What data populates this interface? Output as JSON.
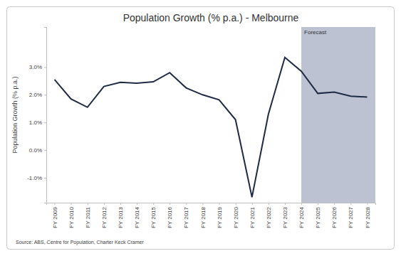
{
  "chart_data": {
    "type": "line",
    "title": "Population Growth (% p.a.) - Melbourne",
    "y_label": "Population Growth (% p.a.)",
    "source": "Source: ABS, Centre for Population, Charter Keck Cramer",
    "categories": [
      "FY 2009",
      "FY 2010",
      "FY 2011",
      "FY 2012",
      "FY 2013",
      "FY 2014",
      "FY 2015",
      "FY 2016",
      "FY 2017",
      "FY 2018",
      "FY 2019",
      "FY 2020",
      "FY 2021",
      "FY 2022",
      "FY 2023",
      "FY 2024",
      "FY 2025",
      "FY 2026",
      "FY 2027",
      "FY 2028"
    ],
    "values": [
      2.55,
      1.85,
      1.55,
      2.3,
      2.45,
      2.42,
      2.47,
      2.8,
      2.25,
      2.0,
      1.82,
      1.1,
      -1.7,
      1.3,
      3.35,
      2.85,
      2.05,
      2.1,
      1.95,
      1.92
    ],
    "color": "#1f2a44",
    "ylim": [
      -1.9,
      4.45
    ],
    "yticks": [
      {
        "value": -1,
        "label": "-1.0%"
      },
      {
        "value": 0,
        "label": "0.0%"
      },
      {
        "value": 1,
        "label": "1.0%"
      },
      {
        "value": 2,
        "label": "2.0%"
      },
      {
        "value": 3,
        "label": "3.0%"
      }
    ],
    "annotations": [
      {
        "text": "Forecast",
        "x": "FY 2024",
        "color": "#bcc2d2"
      }
    ]
  }
}
